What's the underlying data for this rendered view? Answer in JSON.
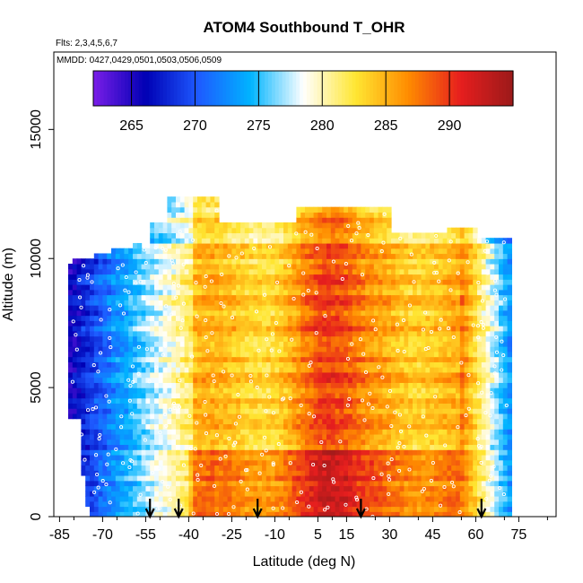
{
  "chart_data": {
    "type": "heatmap",
    "title": "ATOM4 Southbound T_OHR",
    "flights_label": "Flts: 2,3,4,5,6,7",
    "dates_label": "MMDD: 0427,0429,0501,0503,0506,0509",
    "xlabel": "Latitude (deg N)",
    "ylabel": "Altitude (m)",
    "x_ticks": [
      -85,
      -70,
      -55,
      -40,
      -25,
      -10,
      5,
      15,
      30,
      45,
      60,
      75
    ],
    "x_tick_labels": [
      "-85",
      "-70",
      "-55",
      "-40",
      "-25",
      "-10",
      "5",
      "15",
      "30",
      "45",
      "60",
      "75"
    ],
    "y_ticks": [
      0,
      5000,
      10000,
      15000
    ],
    "y_tick_labels": [
      "0",
      "5000",
      "10000",
      "15000"
    ],
    "xlim": [
      -87,
      88
    ],
    "ylim": [
      0,
      18000
    ],
    "colorbar": {
      "range": [
        262,
        295
      ],
      "ticks": [
        265,
        270,
        275,
        280,
        285,
        290
      ],
      "tick_labels": [
        "265",
        "270",
        "275",
        "280",
        "285",
        "290"
      ]
    },
    "colormap": [
      "#7a1ee8",
      "#0000b4",
      "#1e5aff",
      "#00b4ff",
      "#ffffff",
      "#ffe632",
      "#ff8c00",
      "#e61e1e",
      "#9b1a1a"
    ],
    "profile_latitudes": [
      -53.5,
      -43.5,
      -16,
      20,
      62
    ],
    "marker_color": "#ffffff"
  }
}
